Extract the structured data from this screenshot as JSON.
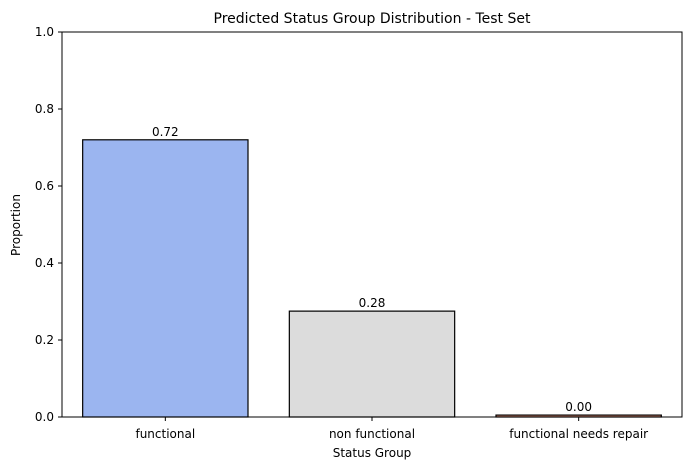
{
  "chart_data": {
    "type": "bar",
    "title": "Predicted Status Group Distribution - Test Set",
    "xlabel": "Status Group",
    "ylabel": "Proportion",
    "categories": [
      "functional",
      "non functional",
      "functional needs repair"
    ],
    "values": [
      0.72,
      0.275,
      0.005
    ],
    "value_labels": [
      "0.72",
      "0.28",
      "0.00"
    ],
    "bar_colors": [
      "#9bb5f0",
      "#dcdcdc",
      "#e8927a"
    ],
    "edge_color": "#000000",
    "ylim": [
      0,
      1
    ],
    "yticks": [
      0,
      0.2,
      0.4,
      0.6,
      0.8,
      1.0
    ],
    "ytick_labels": [
      "0.0",
      "0.2",
      "0.4",
      "0.6",
      "0.8",
      "1.0"
    ],
    "grid": false,
    "legend": "none"
  }
}
